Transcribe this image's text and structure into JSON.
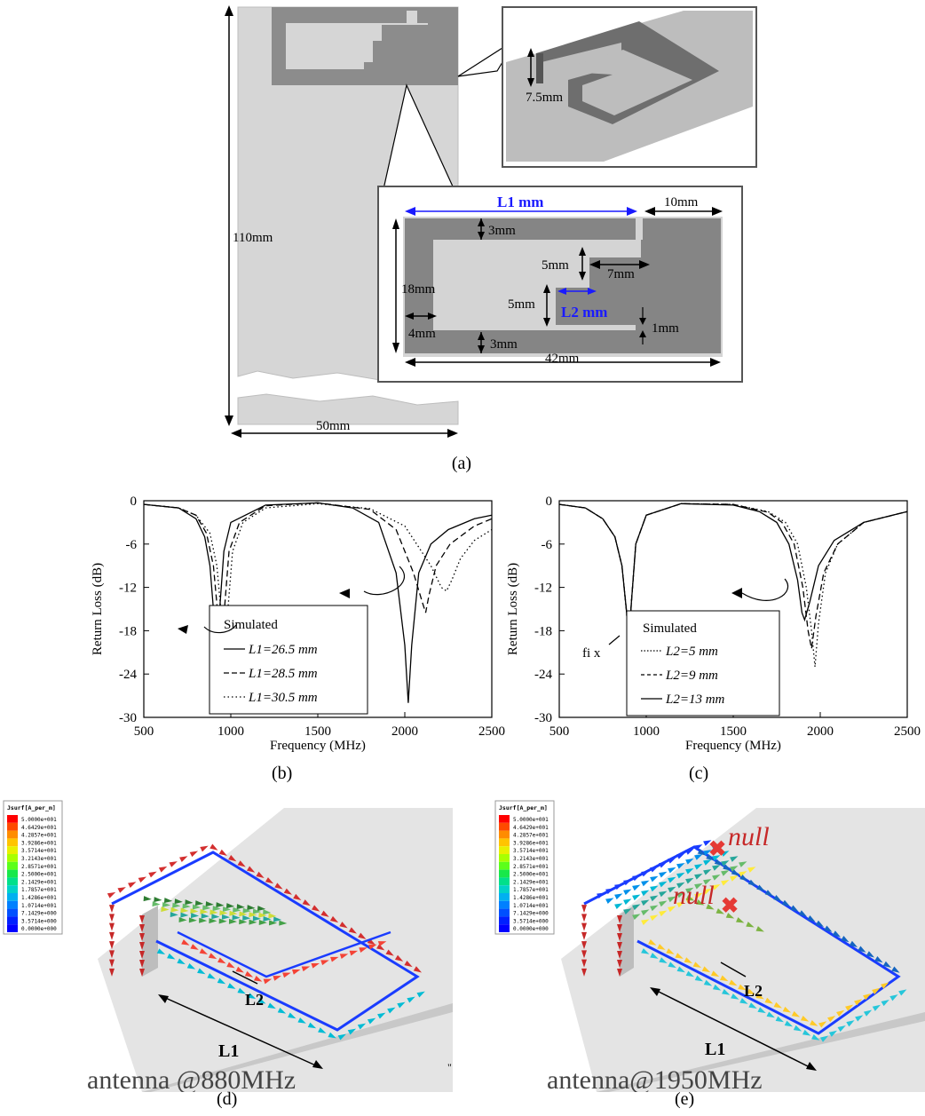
{
  "panel_a": {
    "caption": "(a)",
    "dim_height": "110mm",
    "dim_width": "50mm",
    "dim_feed": "7.5mm",
    "dim_L1": "L1 mm",
    "dim_L2": "L2 mm",
    "dim_10": "10mm",
    "dim_3_top": "3mm",
    "dim_5_upper": "5mm",
    "dim_7": "7mm",
    "dim_18": "18mm",
    "dim_5_lower": "5mm",
    "dim_4": "4mm",
    "dim_1": "1mm",
    "dim_3_bot": "3mm",
    "dim_42": "42mm",
    "colors": {
      "blue_label": "#1a1aff",
      "dark_metal": "#7f7f7f",
      "light_sub": "#cfcfcf"
    }
  },
  "panel_b": {
    "caption": "(b)",
    "legend_title": "Simulated",
    "legend": [
      "L1=26.5 mm",
      "L1=28.5 mm",
      "L1=30.5 mm"
    ]
  },
  "panel_c": {
    "caption": "(c)",
    "legend_title": "Simulated",
    "legend": [
      "L2=5 mm",
      "L2=9 mm",
      "L2=13 mm"
    ],
    "annotation": "fi x"
  },
  "axes": {
    "ylabel": "Return Loss (dB)",
    "xlabel": "Frequency (MHz)",
    "yticks": [
      "0",
      "-6",
      "-12",
      "-18",
      "-24",
      "-30"
    ],
    "xticks": [
      "500",
      "1000",
      "1500",
      "2000",
      "2500"
    ]
  },
  "panel_d": {
    "caption": "(d)",
    "label": "antenna @880MHz",
    "L1": "L1",
    "L2": "L2",
    "colorbar_title": "Jsurf[A_per_m]",
    "colorbar_values": [
      "5.0000e+001",
      "4.6429e+001",
      "4.2857e+001",
      "3.9286e+001",
      "3.5714e+001",
      "3.2143e+001",
      "2.8571e+001",
      "2.5000e+001",
      "2.1429e+001",
      "1.7857e+001",
      "1.4286e+001",
      "1.0714e+001",
      "7.1429e+000",
      "3.5714e+000",
      "0.0000e+000"
    ],
    "mark": "\""
  },
  "panel_e": {
    "caption": "(e)",
    "label": "antenna@1950MHz",
    "L1": "L1",
    "L2": "L2",
    "null1": "null",
    "null2": "null",
    "colorbar_title": "Jsurf[A_per_m]",
    "colorbar_values": [
      "5.0000e+001",
      "4.6429e+001",
      "4.2857e+001",
      "3.9286e+001",
      "3.5714e+001",
      "3.2143e+001",
      "2.8571e+001",
      "2.5000e+001",
      "2.1429e+001",
      "1.7857e+001",
      "1.4286e+001",
      "1.0714e+001",
      "7.1429e+000",
      "3.5714e+000",
      "0.0000e+000"
    ]
  },
  "chart_data": [
    {
      "type": "line",
      "xlabel": "Frequency (MHz)",
      "ylabel": "Return Loss (dB)",
      "xlim": [
        500,
        2500
      ],
      "ylim": [
        -30,
        0
      ],
      "legend_title": "Simulated",
      "series": [
        {
          "name": "L1=26.5 mm",
          "style": "solid",
          "x": [
            500,
            700,
            800,
            850,
            880,
            900,
            915,
            930,
            960,
            1000,
            1200,
            1500,
            1700,
            1850,
            1950,
            2000,
            2020,
            2040,
            2080,
            2150,
            2250,
            2400,
            2500
          ],
          "y": [
            -0.5,
            -1,
            -2.5,
            -5,
            -9,
            -15,
            -19.5,
            -17,
            -7,
            -3,
            -0.6,
            -0.3,
            -1,
            -3,
            -10,
            -20,
            -28,
            -20,
            -10,
            -6,
            -4,
            -2.5,
            -2
          ]
        },
        {
          "name": "L1=28.5 mm",
          "style": "dashed",
          "x": [
            500,
            700,
            800,
            860,
            900,
            930,
            945,
            960,
            990,
            1050,
            1200,
            1500,
            1800,
            1950,
            2050,
            2100,
            2120,
            2140,
            2180,
            2260,
            2400,
            2500
          ],
          "y": [
            -0.5,
            -1,
            -2,
            -4.5,
            -9,
            -17,
            -20.5,
            -16,
            -7,
            -3,
            -0.7,
            -0.3,
            -1.2,
            -4,
            -10,
            -14,
            -15.5,
            -13,
            -9,
            -6,
            -3.5,
            -2.5
          ]
        },
        {
          "name": "L1=30.5 mm",
          "style": "dotted",
          "x": [
            500,
            700,
            800,
            880,
            920,
            950,
            965,
            980,
            1010,
            1070,
            1200,
            1500,
            1800,
            2000,
            2150,
            2210,
            2240,
            2270,
            2320,
            2400,
            2500
          ],
          "y": [
            -0.5,
            -1,
            -2,
            -4.5,
            -9,
            -17,
            -21,
            -16,
            -7,
            -3,
            -1,
            -0.4,
            -1.1,
            -3.5,
            -9,
            -12,
            -12.5,
            -11,
            -8,
            -5.5,
            -4
          ]
        }
      ]
    },
    {
      "type": "line",
      "xlabel": "Frequency (MHz)",
      "ylabel": "Return Loss (dB)",
      "xlim": [
        500,
        2500
      ],
      "ylim": [
        -30,
        0
      ],
      "legend_title": "Simulated",
      "series": [
        {
          "name": "L2=5 mm",
          "style": "dotted",
          "x": [
            500,
            650,
            750,
            820,
            860,
            885,
            900,
            915,
            940,
            1000,
            1200,
            1500,
            1700,
            1800,
            1870,
            1920,
            1950,
            1970,
            1990,
            2030,
            2100,
            2250,
            2500
          ],
          "y": [
            -0.5,
            -1,
            -2.5,
            -5,
            -9,
            -15,
            -19.5,
            -14,
            -6,
            -2,
            -0.4,
            -0.5,
            -1.5,
            -3,
            -6,
            -12,
            -18,
            -23,
            -17,
            -10,
            -6,
            -3,
            -1.5
          ]
        },
        {
          "name": "L2=9 mm",
          "style": "dashed",
          "x": [
            500,
            650,
            750,
            820,
            860,
            885,
            900,
            915,
            940,
            1000,
            1200,
            1500,
            1700,
            1780,
            1850,
            1900,
            1930,
            1950,
            1975,
            2020,
            2100,
            2250,
            2500
          ],
          "y": [
            -0.5,
            -1,
            -2.5,
            -5,
            -9,
            -15,
            -19.5,
            -14,
            -6,
            -2,
            -0.4,
            -0.5,
            -1.6,
            -3,
            -6,
            -12,
            -18,
            -20.5,
            -16,
            -10,
            -6,
            -3,
            -1.5
          ]
        },
        {
          "name": "L2=13 mm",
          "style": "solid",
          "x": [
            500,
            650,
            750,
            820,
            860,
            885,
            900,
            915,
            940,
            1000,
            1200,
            1500,
            1650,
            1750,
            1820,
            1870,
            1895,
            1910,
            1940,
            1990,
            2080,
            2250,
            2500
          ],
          "y": [
            -0.5,
            -1,
            -2.5,
            -5,
            -9,
            -15,
            -19.5,
            -14,
            -6,
            -2,
            -0.4,
            -0.6,
            -1.5,
            -3,
            -6,
            -11,
            -15.5,
            -16.5,
            -14,
            -9,
            -5.5,
            -3,
            -1.5
          ]
        }
      ]
    }
  ]
}
